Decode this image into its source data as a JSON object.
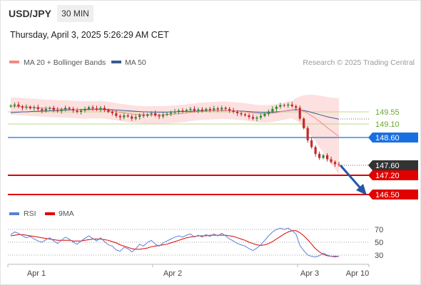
{
  "header": {
    "symbol": "USD/JPY",
    "timeframe": "30 MIN",
    "datetime": "Thursday, April 3, 2025 5:26:29 AM CET"
  },
  "legend": {
    "ma20_label": "MA 20 + Bollinger Bands",
    "ma50_label": "MA 50",
    "ma20_color": "#f28b82",
    "ma50_color": "#3b5b92",
    "credit": "Research © 2025 Trading Central"
  },
  "colors": {
    "up_candle": "#2e8b2e",
    "down_candle": "#c62828",
    "resistance_line": "#b8d98a",
    "resistance_text": "#6aa832",
    "pivot": "#1a6fe0",
    "support": "#e00000",
    "current": "#333333",
    "arrow": "#2456a4",
    "rsi": "#5b7fd6",
    "rsi_ma": "#e00000"
  },
  "chart_data": [
    {
      "type": "candlestick",
      "x_labels": [
        "Apr 1",
        "Apr 2",
        "Apr 3",
        "Apr 10"
      ],
      "price_levels": {
        "resistance_2": 149.55,
        "resistance_1": 149.1,
        "pivot": 148.6,
        "last": 147.6,
        "support_1": 147.2,
        "support_2": 146.5
      },
      "level_labels": [
        "149.55",
        "149.10",
        "148.60",
        "147.60",
        "147.20",
        "146.50"
      ],
      "close": [
        149.78,
        149.82,
        149.75,
        149.7,
        149.74,
        149.68,
        149.72,
        149.65,
        149.6,
        149.66,
        149.7,
        149.62,
        149.58,
        149.64,
        149.7,
        149.66,
        149.6,
        149.55,
        149.6,
        149.66,
        149.72,
        149.68,
        149.64,
        149.7,
        149.62,
        149.55,
        149.5,
        149.4,
        149.35,
        149.42,
        149.38,
        149.3,
        149.36,
        149.44,
        149.4,
        149.46,
        149.5,
        149.42,
        149.38,
        149.44,
        149.48,
        149.52,
        149.56,
        149.6,
        149.58,
        149.62,
        149.66,
        149.6,
        149.64,
        149.6,
        149.66,
        149.62,
        149.68,
        149.64,
        149.7,
        149.66,
        149.6,
        149.55,
        149.5,
        149.46,
        149.42,
        149.36,
        149.3,
        149.34,
        149.4,
        149.48,
        149.56,
        149.66,
        149.74,
        149.8,
        149.78,
        149.82,
        149.76,
        149.7,
        149.3,
        148.95,
        148.5,
        148.25,
        148,
        147.85,
        147.95,
        147.8,
        147.7,
        147.62,
        147.6
      ],
      "ma20": [
        149.75,
        149.76,
        149.75,
        149.74,
        149.73,
        149.72,
        149.71,
        149.7,
        149.69,
        149.68,
        149.68,
        149.67,
        149.66,
        149.66,
        149.66,
        149.65,
        149.64,
        149.63,
        149.62,
        149.62,
        149.62,
        149.63,
        149.63,
        149.63,
        149.62,
        149.6,
        149.58,
        149.56,
        149.53,
        149.51,
        149.49,
        149.47,
        149.46,
        149.45,
        149.44,
        149.44,
        149.44,
        149.44,
        149.44,
        149.44,
        149.45,
        149.46,
        149.47,
        149.48,
        149.49,
        149.51,
        149.53,
        149.54,
        149.56,
        149.57,
        149.58,
        149.59,
        149.6,
        149.6,
        149.61,
        149.61,
        149.6,
        149.59,
        149.58,
        149.57,
        149.55,
        149.53,
        149.51,
        149.49,
        149.48,
        149.48,
        149.48,
        149.5,
        149.52,
        149.55,
        149.58,
        149.61,
        149.63,
        149.65,
        149.62,
        149.57,
        149.5,
        149.41,
        149.31,
        149.2,
        149.09,
        148.97,
        148.86,
        148.75,
        148.65
      ],
      "ma50": [
        149.52,
        149.53,
        149.54,
        149.55,
        149.55,
        149.56,
        149.57,
        149.57,
        149.58,
        149.58,
        149.59,
        149.6,
        149.6,
        149.61,
        149.62,
        149.62,
        149.63,
        149.63,
        149.64,
        149.64,
        149.65,
        149.65,
        149.65,
        149.65,
        149.65,
        149.64,
        149.63,
        149.62,
        149.61,
        149.6,
        149.59,
        149.58,
        149.57,
        149.56,
        149.55,
        149.55,
        149.54,
        149.54,
        149.54,
        149.54,
        149.54,
        149.55,
        149.55,
        149.56,
        149.56,
        149.57,
        149.57,
        149.58,
        149.58,
        149.59,
        149.59,
        149.6,
        149.6,
        149.6,
        149.6,
        149.6,
        149.6,
        149.59,
        149.59,
        149.58,
        149.57,
        149.56,
        149.55,
        149.54,
        149.53,
        149.53,
        149.53,
        149.54,
        149.55,
        149.56,
        149.58,
        149.6,
        149.62,
        149.63,
        149.62,
        149.6,
        149.57,
        149.53,
        149.49,
        149.45,
        149.41,
        149.37,
        149.34,
        149.31,
        149.28
      ],
      "forecast_target": 146.5
    },
    {
      "type": "line",
      "title": "RSI",
      "ma_label": "9MA",
      "y_ticks": [
        70,
        50,
        30
      ],
      "rsi": [
        62,
        66,
        64,
        60,
        57,
        59,
        55,
        52,
        50,
        54,
        57,
        52,
        48,
        53,
        58,
        55,
        50,
        47,
        52,
        56,
        60,
        56,
        52,
        57,
        51,
        46,
        44,
        38,
        36,
        42,
        40,
        35,
        40,
        47,
        44,
        50,
        53,
        47,
        44,
        49,
        52,
        55,
        58,
        60,
        58,
        61,
        63,
        58,
        61,
        58,
        62,
        59,
        63,
        60,
        64,
        60,
        55,
        52,
        48,
        46,
        44,
        40,
        37,
        41,
        46,
        53,
        60,
        66,
        70,
        72,
        70,
        72,
        68,
        63,
        45,
        37,
        30,
        28,
        27,
        29,
        33,
        30,
        28,
        27,
        28
      ],
      "rsi_ma": [
        60,
        61,
        62,
        62,
        61,
        60,
        59,
        58,
        57,
        56,
        55,
        54,
        53,
        53,
        53,
        53,
        52,
        52,
        52,
        53,
        54,
        55,
        55,
        55,
        54,
        53,
        51,
        49,
        46,
        44,
        42,
        40,
        39,
        39,
        40,
        41,
        43,
        44,
        45,
        46,
        47,
        49,
        51,
        53,
        55,
        57,
        58,
        59,
        60,
        60,
        60,
        61,
        61,
        61,
        61,
        61,
        60,
        59,
        57,
        55,
        53,
        50,
        48,
        46,
        45,
        46,
        48,
        51,
        55,
        59,
        63,
        66,
        68,
        68,
        65,
        60,
        54,
        47,
        40,
        35,
        31,
        29,
        28,
        28,
        28
      ]
    }
  ]
}
